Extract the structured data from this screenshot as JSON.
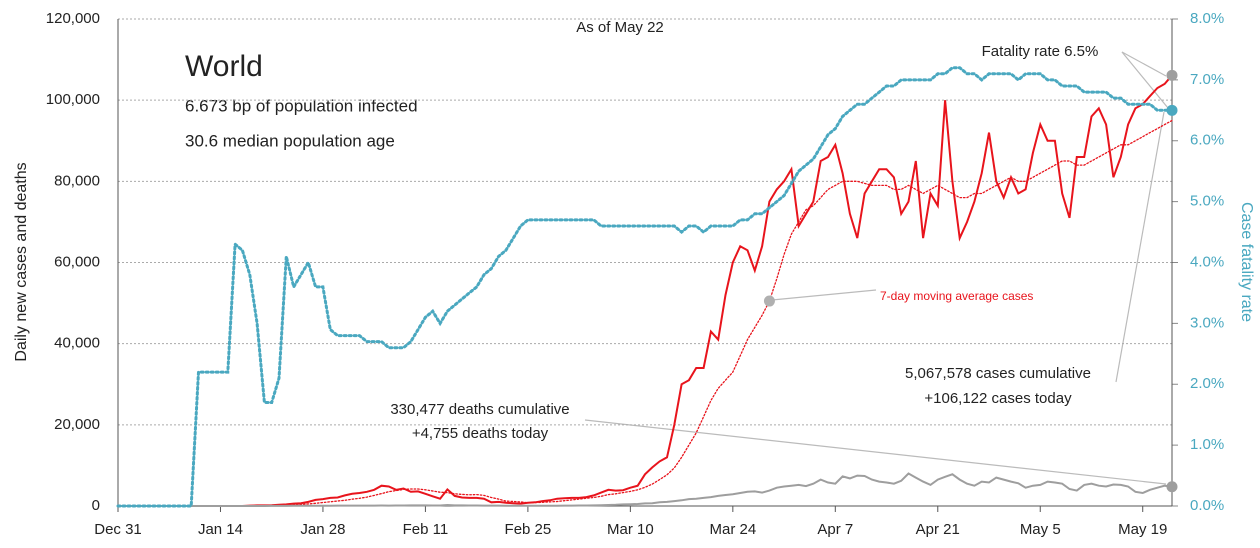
{
  "chart_data": {
    "type": "line",
    "title": "World",
    "subtitle": [
      "6.673 bp of population infected",
      "30.6 median population age"
    ],
    "annotations": [
      "As of May 22",
      "Fatality rate 6.5%",
      "330,477 deaths cumulative",
      "+4,755 deaths today",
      "5,067,578 cases cumulative",
      "+106,122 cases today"
    ],
    "y_label": "Daily new cases and deaths",
    "y2_label": "Case fatality rate",
    "categories": [
      "Dec 31",
      null,
      null,
      null,
      null,
      null,
      null,
      null,
      null,
      null,
      null,
      null,
      null,
      null,
      "Jan 14",
      null,
      null,
      null,
      null,
      null,
      null,
      null,
      null,
      null,
      null,
      null,
      null,
      null,
      "Jan 28",
      null,
      null,
      null,
      null,
      null,
      null,
      null,
      null,
      null,
      null,
      null,
      null,
      null,
      "Feb 11",
      null,
      null,
      null,
      null,
      null,
      null,
      null,
      null,
      null,
      null,
      null,
      null,
      null,
      "Feb 25",
      null,
      null,
      null,
      null,
      null,
      null,
      null,
      null,
      null,
      null,
      null,
      null,
      null,
      "Mar 10",
      null,
      null,
      null,
      null,
      null,
      null,
      null,
      null,
      null,
      null,
      null,
      null,
      null,
      "Mar 24",
      null,
      null,
      null,
      null,
      null,
      null,
      null,
      null,
      null,
      null,
      null,
      null,
      null,
      "Apr 7",
      null,
      null,
      null,
      null,
      null,
      null,
      null,
      null,
      null,
      null,
      null,
      null,
      null,
      "Apr 21",
      null,
      null,
      null,
      null,
      null,
      null,
      null,
      null,
      null,
      null,
      null,
      null,
      null,
      "May 5",
      null,
      null,
      null,
      null,
      null,
      null,
      null,
      null,
      null,
      null,
      null,
      null,
      null,
      "May 19",
      null,
      null,
      null,
      null
    ],
    "ylim": [
      0,
      120000
    ],
    "yticks": [
      0,
      {
        "value": 20000,
        "label": "20,000"
      },
      {
        "value": 40000,
        "label": "40,000"
      },
      {
        "value": 60000,
        "label": "60,000"
      },
      {
        "value": 80000,
        "label": "80,000"
      },
      {
        "value": 100000,
        "label": "100,000"
      },
      {
        "value": 120000,
        "label": "120,000"
      }
    ],
    "y2lim": [
      0,
      8
    ],
    "y2ticks": [
      {
        "value": 0,
        "label": "0.0%"
      },
      {
        "value": 1,
        "label": "1.0%"
      },
      {
        "value": 2,
        "label": "2.0%"
      },
      {
        "value": 3,
        "label": "3.0%"
      },
      {
        "value": 4,
        "label": "4.0%"
      },
      {
        "value": 5,
        "label": "5.0%"
      },
      {
        "value": 6,
        "label": "6.0%"
      },
      {
        "value": 7,
        "label": "7.0%"
      },
      {
        "value": 8,
        "label": "8.0%"
      }
    ],
    "grid": true,
    "series": [
      {
        "color": "#e8141c",
        "style": "solid",
        "values": [
          0,
          0,
          0,
          0,
          0,
          0,
          0,
          0,
          0,
          0,
          0,
          0,
          0,
          0,
          0,
          0,
          0,
          0,
          100,
          150,
          150,
          200,
          300,
          400,
          600,
          700,
          1000,
          1500,
          1700,
          2000,
          2100,
          2600,
          3000,
          3200,
          3500,
          4000,
          5000,
          4800,
          4000,
          4300,
          3500,
          3600,
          3000,
          2400,
          1800,
          4100,
          2500,
          2100,
          2000,
          2000,
          1800,
          900,
          1000,
          800,
          700,
          600,
          800,
          900,
          1200,
          1400,
          1800,
          1900,
          2000,
          2000,
          2200,
          2600,
          3300,
          4000,
          3800,
          3900,
          4500,
          5000,
          7800,
          9500,
          11000,
          12000,
          20000,
          30000,
          31000,
          34000,
          34000,
          43000,
          41000,
          52000,
          60000,
          64000,
          63000,
          58000,
          64000,
          75000,
          78000,
          80000,
          83000,
          69000,
          72000,
          75000,
          85000,
          86000,
          89000,
          82000,
          72000,
          66000,
          77000,
          80000,
          83000,
          83000,
          81000,
          72000,
          75000,
          85000,
          66000,
          77000,
          74000,
          100000,
          80000,
          66000,
          70000,
          75000,
          82000,
          92000,
          80000,
          76000,
          81000,
          77000,
          78000,
          87000,
          94000,
          90000,
          90000,
          77000,
          71000,
          86000,
          86000,
          96000,
          98000,
          94000,
          81000,
          86000,
          94000,
          98000,
          99000,
          101000,
          103000,
          104000,
          106122
        ]
      },
      {
        "name": "7-day moving average cases",
        "color": "#e8141c",
        "style": "dotted",
        "values": [
          0,
          0,
          0,
          0,
          0,
          0,
          0,
          0,
          0,
          0,
          0,
          0,
          0,
          0,
          0,
          0,
          0,
          0,
          14,
          36,
          57,
          86,
          129,
          186,
          271,
          371,
          514,
          671,
          857,
          1029,
          1229,
          1414,
          1671,
          1900,
          2200,
          2600,
          3057,
          3529,
          3800,
          4100,
          4200,
          4200,
          4000,
          3700,
          3400,
          3300,
          3000,
          2850,
          2750,
          2800,
          2600,
          2100,
          1700,
          1200,
          1100,
          1000,
          800,
          840,
          900,
          1000,
          1100,
          1300,
          1500,
          1700,
          1900,
          2100,
          2400,
          2800,
          3000,
          3300,
          3600,
          4000,
          4600,
          5400,
          6500,
          7700,
          9400,
          12000,
          15000,
          18000,
          22000,
          26000,
          29000,
          31000,
          33000,
          37000,
          41000,
          44000,
          47000,
          50500,
          56000,
          62000,
          67000,
          70000,
          73000,
          74000,
          76000,
          78000,
          79000,
          80000,
          80000,
          80000,
          79500,
          79000,
          79000,
          79000,
          78000,
          78000,
          79000,
          78000,
          77000,
          78000,
          79000,
          78000,
          77000,
          76000,
          76000,
          77000,
          77000,
          78000,
          79000,
          80000,
          81000,
          80000,
          80000,
          81000,
          82000,
          83000,
          84000,
          85000,
          85000,
          84000,
          84000,
          85000,
          86000,
          87000,
          88000,
          89000,
          89000,
          90000,
          91000,
          92000,
          93000,
          94000,
          95000
        ]
      },
      {
        "color": "#9e9e9e",
        "style": "solid",
        "values": [
          0,
          0,
          0,
          0,
          0,
          0,
          0,
          0,
          0,
          0,
          0,
          0,
          0,
          0,
          0,
          0,
          0,
          0,
          0,
          0,
          10,
          20,
          20,
          30,
          40,
          50,
          50,
          60,
          70,
          80,
          90,
          90,
          100,
          100,
          110,
          110,
          120,
          110,
          120,
          130,
          140,
          140,
          150,
          120,
          130,
          250,
          140,
          140,
          130,
          120,
          110,
          100,
          100,
          80,
          70,
          60,
          60,
          60,
          70,
          60,
          80,
          90,
          100,
          120,
          130,
          160,
          200,
          250,
          300,
          400,
          450,
          500,
          650,
          700,
          900,
          1000,
          1200,
          1400,
          1700,
          1800,
          2000,
          2200,
          2500,
          2700,
          2900,
          3200,
          3500,
          3600,
          3300,
          3800,
          4500,
          4800,
          5000,
          5200,
          4900,
          5500,
          6500,
          5800,
          5500,
          7300,
          6800,
          7500,
          7400,
          6500,
          6000,
          5800,
          5500,
          6200,
          8000,
          7000,
          6000,
          5200,
          6500,
          7200,
          7800,
          6500,
          5500,
          5000,
          6000,
          5800,
          7000,
          6500,
          6000,
          5600,
          4500,
          5000,
          5200,
          6000,
          5800,
          5500,
          4200,
          3800,
          5200,
          5500,
          5000,
          4800,
          5300,
          5200,
          4800,
          3500,
          3200,
          4000,
          4500,
          5000,
          4755
        ]
      },
      {
        "color": "#4aa8c0",
        "style": "dotted",
        "axis": "y2",
        "values": [
          0,
          0,
          0,
          0,
          0,
          0,
          0,
          0,
          0,
          0,
          0,
          2.2,
          2.2,
          2.2,
          2.2,
          2.2,
          4.3,
          4.2,
          3.8,
          3.0,
          1.7,
          1.7,
          2.1,
          4.1,
          3.6,
          3.8,
          4.0,
          3.6,
          3.6,
          2.9,
          2.8,
          2.8,
          2.8,
          2.8,
          2.7,
          2.7,
          2.7,
          2.6,
          2.6,
          2.6,
          2.7,
          2.9,
          3.1,
          3.2,
          3.0,
          3.2,
          3.3,
          3.4,
          3.5,
          3.6,
          3.8,
          3.9,
          4.1,
          4.2,
          4.4,
          4.6,
          4.7,
          4.7,
          4.7,
          4.7,
          4.7,
          4.7,
          4.7,
          4.7,
          4.7,
          4.7,
          4.6,
          4.6,
          4.6,
          4.6,
          4.6,
          4.6,
          4.6,
          4.6,
          4.6,
          4.6,
          4.6,
          4.5,
          4.6,
          4.6,
          4.5,
          4.6,
          4.6,
          4.6,
          4.6,
          4.7,
          4.7,
          4.8,
          4.8,
          4.9,
          5.0,
          5.1,
          5.3,
          5.5,
          5.6,
          5.7,
          5.9,
          6.1,
          6.2,
          6.4,
          6.5,
          6.6,
          6.6,
          6.7,
          6.8,
          6.9,
          6.9,
          7.0,
          7.0,
          7.0,
          7.0,
          7.0,
          7.1,
          7.1,
          7.2,
          7.2,
          7.1,
          7.1,
          7.0,
          7.1,
          7.1,
          7.1,
          7.1,
          7.0,
          7.1,
          7.1,
          7.1,
          7.0,
          7.0,
          6.9,
          6.9,
          6.9,
          6.8,
          6.8,
          6.8,
          6.8,
          6.7,
          6.7,
          6.6,
          6.6,
          6.6,
          6.6,
          6.5,
          6.5,
          6.5
        ]
      }
    ]
  }
}
